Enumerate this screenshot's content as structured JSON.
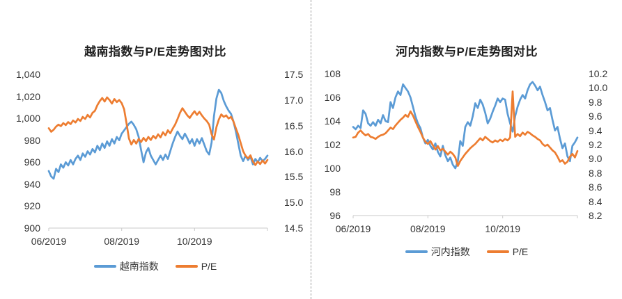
{
  "styles": {
    "series_blue": "#5B9BD5",
    "series_orange": "#ED7D31",
    "axis_line": "#c9c9c9",
    "tick_text": "#333333",
    "divider": "#9a9a9a",
    "background": "#ffffff"
  },
  "chart_data": [
    {
      "type": "line",
      "title": "越南指数与P/E走势图对比",
      "x_tick_labels": [
        "06/2019",
        "08/2019",
        "10/2019"
      ],
      "left_axis": {
        "ticks": [
          "1,040",
          "1,020",
          "1,000",
          "980",
          "960",
          "940",
          "920",
          "900"
        ],
        "min": 900,
        "max": 1040
      },
      "right_axis": {
        "ticks": [
          "17.5",
          "17.0",
          "16.5",
          "16.0",
          "15.5",
          "15.0",
          "14.5"
        ],
        "min": 14.5,
        "max": 17.5
      },
      "legend": [
        "越南指数",
        "P/E"
      ],
      "grid": false,
      "legend_position": "bottom",
      "series": [
        {
          "name": "越南指数",
          "axis": "left",
          "color": "#5B9BD5",
          "values": [
            952,
            947,
            945,
            954,
            951,
            958,
            955,
            960,
            957,
            962,
            958,
            963,
            966,
            962,
            968,
            965,
            970,
            967,
            972,
            969,
            975,
            971,
            977,
            973,
            979,
            975,
            981,
            977,
            983,
            980,
            986,
            989,
            992,
            995,
            997,
            994,
            990,
            983,
            971,
            960,
            969,
            973,
            966,
            962,
            958,
            962,
            966,
            962,
            967,
            963,
            970,
            977,
            983,
            988,
            984,
            981,
            986,
            982,
            977,
            981,
            975,
            981,
            977,
            982,
            976,
            970,
            967,
            978,
            1002,
            1018,
            1026,
            1023,
            1016,
            1011,
            1007,
            1004,
            997,
            988,
            977,
            966,
            961,
            966,
            962,
            965,
            958,
            963,
            960,
            964,
            961,
            963,
            966
          ]
        },
        {
          "name": "P/E",
          "axis": "right",
          "color": "#ED7D31",
          "values": [
            16.45,
            16.38,
            16.42,
            16.48,
            16.52,
            16.49,
            16.55,
            16.51,
            16.57,
            16.53,
            16.6,
            16.56,
            16.63,
            16.59,
            16.67,
            16.63,
            16.71,
            16.66,
            16.75,
            16.79,
            16.9,
            16.98,
            17.04,
            16.97,
            17.05,
            17.0,
            16.93,
            17.02,
            16.96,
            17.0,
            16.94,
            16.82,
            16.55,
            16.25,
            16.13,
            16.22,
            16.15,
            16.24,
            16.18,
            16.26,
            16.2,
            16.28,
            16.22,
            16.3,
            16.25,
            16.33,
            16.27,
            16.37,
            16.31,
            16.41,
            16.35,
            16.44,
            16.52,
            16.63,
            16.75,
            16.84,
            16.77,
            16.7,
            16.65,
            16.72,
            16.78,
            16.71,
            16.77,
            16.7,
            16.64,
            16.59,
            16.52,
            16.33,
            16.23,
            16.47,
            16.62,
            16.72,
            16.67,
            16.7,
            16.64,
            16.67,
            16.58,
            16.45,
            16.32,
            16.16,
            16.0,
            15.91,
            15.86,
            15.92,
            15.8,
            15.73,
            15.8,
            15.75,
            15.82,
            15.76,
            15.83
          ]
        }
      ]
    },
    {
      "type": "line",
      "title": "河内指数与P/E走势图对比",
      "x_tick_labels": [
        "06/2019",
        "08/2019",
        "10/2019"
      ],
      "left_axis": {
        "ticks": [
          "108",
          "106",
          "104",
          "102",
          "100",
          "98",
          "96"
        ],
        "min": 96,
        "max": 108
      },
      "right_axis": {
        "ticks": [
          "10.2",
          "10.0",
          "9.8",
          "9.6",
          "9.4",
          "9.2",
          "9.0",
          "8.8",
          "8.6",
          "8.4",
          "8.2"
        ],
        "min": 8.2,
        "max": 10.2
      },
      "legend": [
        "河内指数",
        "P/E"
      ],
      "grid": false,
      "legend_position": "bottom",
      "series": [
        {
          "name": "河内指数",
          "axis": "left",
          "color": "#5B9BD5",
          "values": [
            103.5,
            103.3,
            103.6,
            103.4,
            104.9,
            104.6,
            103.8,
            103.6,
            103.9,
            103.6,
            104.1,
            103.8,
            104.5,
            104.0,
            103.9,
            105.6,
            105.1,
            106.0,
            106.5,
            106.2,
            107.1,
            106.8,
            106.5,
            106.0,
            105.2,
            104.4,
            103.8,
            103.4,
            102.6,
            102.1,
            102.4,
            101.9,
            101.6,
            102.1,
            101.4,
            101.0,
            101.9,
            101.1,
            100.6,
            100.9,
            100.3,
            100.0,
            100.6,
            102.3,
            101.9,
            103.5,
            103.9,
            103.6,
            104.4,
            105.5,
            105.1,
            105.8,
            105.4,
            104.7,
            103.8,
            104.2,
            104.8,
            105.3,
            105.9,
            105.6,
            105.9,
            105.8,
            104.6,
            103.8,
            103.1,
            104.4,
            105.2,
            105.8,
            106.2,
            105.9,
            106.6,
            107.1,
            107.3,
            107.0,
            106.6,
            106.9,
            106.2,
            105.6,
            104.9,
            105.1,
            104.1,
            103.2,
            103.5,
            102.5,
            101.7,
            102.1,
            101.0,
            100.6,
            101.9,
            102.2,
            102.6
          ]
        },
        {
          "name": "P/E",
          "axis": "right",
          "color": "#ED7D31",
          "values": [
            9.3,
            9.31,
            9.37,
            9.4,
            9.36,
            9.33,
            9.35,
            9.31,
            9.3,
            9.28,
            9.31,
            9.33,
            9.34,
            9.36,
            9.4,
            9.44,
            9.42,
            9.47,
            9.51,
            9.55,
            9.58,
            9.62,
            9.59,
            9.67,
            9.61,
            9.53,
            9.45,
            9.38,
            9.3,
            9.24,
            9.21,
            9.25,
            9.19,
            9.13,
            9.18,
            9.12,
            9.14,
            9.1,
            9.06,
            9.1,
            9.07,
            9.02,
            8.9,
            8.97,
            9.02,
            9.07,
            9.11,
            9.15,
            9.18,
            9.21,
            9.25,
            9.29,
            9.26,
            9.31,
            9.28,
            9.25,
            9.23,
            9.26,
            9.24,
            9.27,
            9.25,
            9.28,
            9.26,
            9.3,
            9.95,
            9.31,
            9.35,
            9.32,
            9.37,
            9.34,
            9.38,
            9.36,
            9.33,
            9.31,
            9.28,
            9.26,
            9.21,
            9.18,
            9.2,
            9.16,
            9.12,
            9.09,
            9.03,
            8.96,
            8.98,
            8.93,
            8.96,
            9.03,
            9.07,
            9.02,
            9.11
          ]
        }
      ]
    }
  ]
}
